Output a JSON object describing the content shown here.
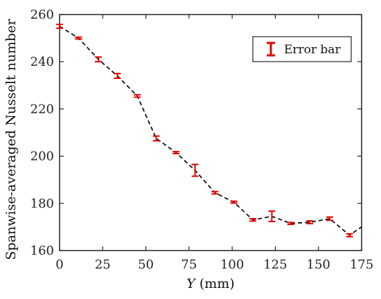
{
  "chart_data": {
    "type": "line",
    "xlabel_var": "Y",
    "xlabel_unit": " (mm)",
    "ylabel": "Spanwise-averaged Nusselt number",
    "xlim": [
      0,
      175
    ],
    "ylim": [
      160,
      260
    ],
    "xticks": [
      0,
      25,
      50,
      75,
      100,
      125,
      150,
      175
    ],
    "yticks": [
      160,
      180,
      200,
      220,
      240,
      260
    ],
    "grid": false,
    "legend": {
      "placement": "top-right",
      "label": "Error bar"
    },
    "series": [
      {
        "name": "Error bar",
        "color": "#e00000",
        "line_color": "#111111",
        "line_style": "dashed",
        "points": [
          {
            "x": 0,
            "y": 255,
            "err": 0.8
          },
          {
            "x": 11,
            "y": 250,
            "err": 0.4
          },
          {
            "x": 22.5,
            "y": 241,
            "err": 1.0
          },
          {
            "x": 33.5,
            "y": 234,
            "err": 1.0
          },
          {
            "x": 45,
            "y": 225.5,
            "err": 0.5
          },
          {
            "x": 56,
            "y": 207.5,
            "err": 1.0
          },
          {
            "x": 67.5,
            "y": 201.5,
            "err": 0.4
          },
          {
            "x": 78.5,
            "y": 194,
            "err": 2.5
          },
          {
            "x": 90,
            "y": 184.5,
            "err": 0.5
          },
          {
            "x": 101,
            "y": 180.5,
            "err": 0.4
          },
          {
            "x": 112,
            "y": 173,
            "err": 0.5
          },
          {
            "x": 123,
            "y": 174.5,
            "err": 2.2
          },
          {
            "x": 134,
            "y": 171.5,
            "err": 0.4
          },
          {
            "x": 145,
            "y": 172,
            "err": 0.6
          },
          {
            "x": 156.5,
            "y": 173.5,
            "err": 0.7
          },
          {
            "x": 168,
            "y": 166.5,
            "err": 0.6
          },
          {
            "x": 175,
            "y": 170,
            "err": 0
          }
        ]
      }
    ]
  }
}
